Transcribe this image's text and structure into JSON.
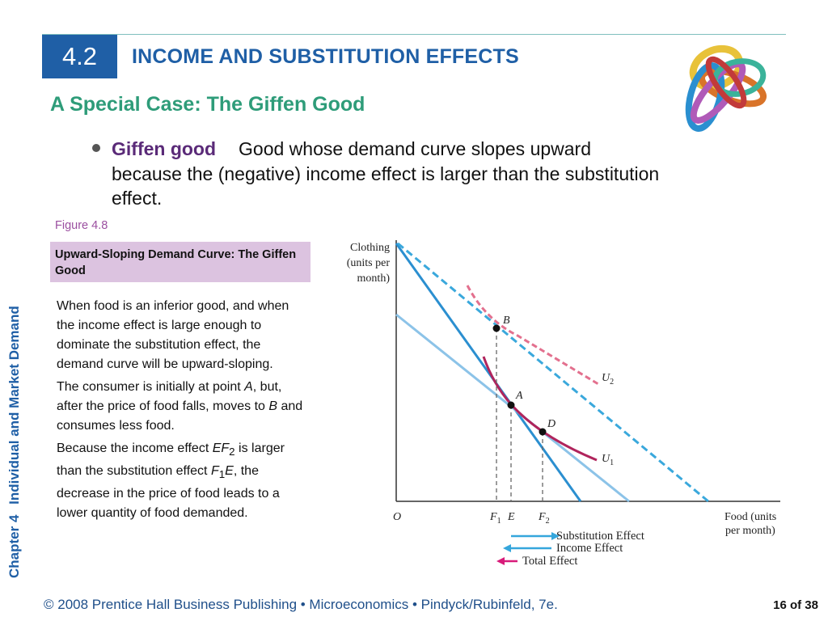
{
  "header": {
    "section_number": "4.2",
    "title": "INCOME AND SUBSTITUTION EFFECTS",
    "subtitle": "A Special Case: The Giffen Good"
  },
  "bullet": {
    "term": "Giffen good",
    "definition": "Good whose demand curve slopes upward because the (negative) income effect is larger than the substitution effect."
  },
  "figure": {
    "number": "Figure 4.8",
    "caption": "Upward-Sloping Demand Curve: The Giffen Good",
    "desc1": "When food is an inferior good, and when the income effect is large enough to dominate the substitution effect, the demand curve will be upward-sloping.",
    "desc2_a": "The consumer is initially at point ",
    "desc2_A": "A",
    "desc2_b": ", but, after the price of food falls, moves to ",
    "desc2_B": "B",
    "desc2_c": " and consumes less food.",
    "desc3_a": "Because the income effect ",
    "desc3_EF": "EF",
    "desc3_sub2": "2",
    "desc3_b": " is larger than the substitution effect ",
    "desc3_F": "F",
    "desc3_sub1": "1",
    "desc3_E": "E",
    "desc3_c": ", the decrease in the price of food leads to a lower quantity of food demanded."
  },
  "graph": {
    "y_label": [
      "Clothing",
      "(units per",
      "month)"
    ],
    "x_label": [
      "Food (units",
      "per month)"
    ],
    "origin": "O",
    "x_ticks": [
      {
        "main": "F",
        "sub": "1"
      },
      {
        "main": "E",
        "sub": ""
      },
      {
        "main": "F",
        "sub": "2"
      }
    ],
    "points": {
      "B": "B",
      "A": "A",
      "D": "D"
    },
    "curves": {
      "u2": {
        "main": "U",
        "sub": "2"
      },
      "u1": {
        "main": "U",
        "sub": "1"
      }
    },
    "legend": [
      "Substitution Effect",
      "Income Effect",
      "Total Effect"
    ],
    "colors": {
      "budget": "#3aa0d6",
      "indiff_u2": "#e06a8a",
      "indiff_u1": "#b0245c",
      "total_arrow": "#d81b7a"
    }
  },
  "sidebar": {
    "chapter": "Chapter 4",
    "chapter_title": "Individual and Market Demand"
  },
  "footer": {
    "text": "© 2008 Prentice Hall Business Publishing  •  Microeconomics  •  Pindyck/Rubinfeld, 7e.",
    "page": "16 of 38"
  }
}
